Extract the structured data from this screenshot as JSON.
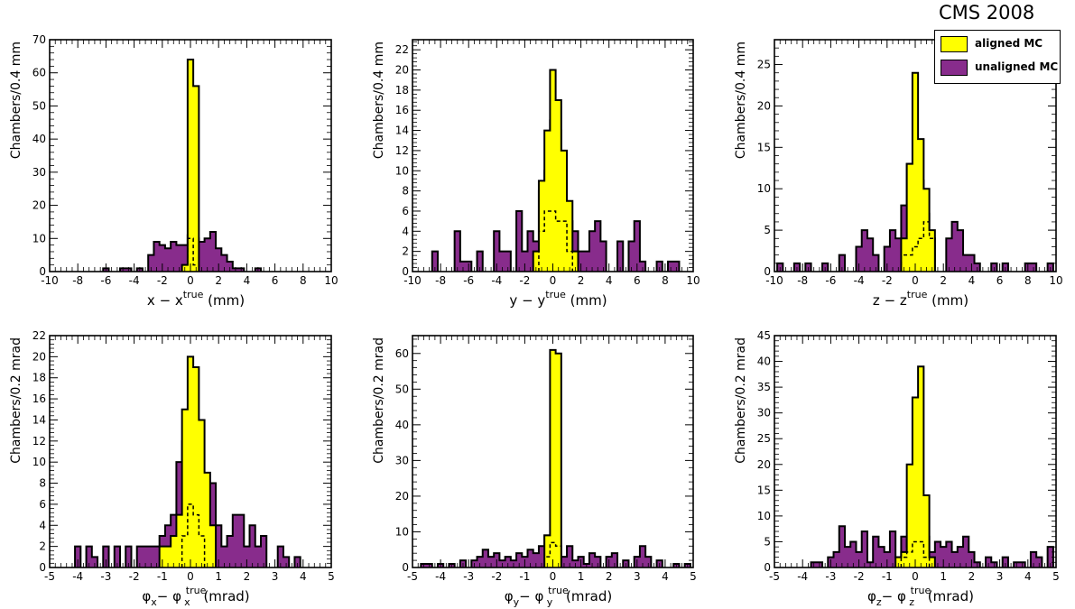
{
  "figure": {
    "label": "CMS 2008"
  },
  "legend": {
    "entries": [
      {
        "label": "aligned MC",
        "color": "#ffff00"
      },
      {
        "label": "unaligned MC",
        "color": "#882c8c"
      }
    ]
  },
  "colors": {
    "aligned": "#ffff00",
    "unaligned": "#882c8c",
    "outline": "#000000"
  },
  "chart_data": [
    {
      "type": "histogram",
      "xlabel": "x − x",
      "xlabel_sup": "true",
      "xlabel_unit": "(mm)",
      "ylabel": "Chambers/0.4 mm",
      "xlim": [
        -10,
        10
      ],
      "ylim": [
        0,
        70
      ],
      "xticks": [
        -10,
        -8,
        -6,
        -4,
        -2,
        0,
        2,
        4,
        6,
        8,
        10
      ],
      "yticks": [
        0,
        10,
        20,
        30,
        40,
        50,
        60,
        70
      ],
      "bin_width": 0.4,
      "unaligned": {
        "x": [
          -6,
          -4.8,
          -4.4,
          -3.6,
          -2.8,
          -2.4,
          -2.0,
          -1.6,
          -1.2,
          -0.8,
          -0.4,
          0,
          0.4,
          0.8,
          1.2,
          1.6,
          2.0,
          2.4,
          2.8,
          3.2,
          3.6,
          4.8
        ],
        "y": [
          1,
          1,
          1,
          1,
          5,
          9,
          8,
          7,
          9,
          8,
          8,
          11,
          10,
          9,
          10,
          12,
          7,
          5,
          3,
          1,
          1,
          1
        ]
      },
      "aligned": {
        "x": [
          -0.4,
          0,
          0.4
        ],
        "y": [
          2,
          64,
          56
        ]
      },
      "aligned_detail": {
        "x": [
          -0.4,
          0,
          0.4
        ],
        "y": [
          2,
          10,
          2
        ]
      }
    },
    {
      "type": "histogram",
      "xlabel": "y − y",
      "xlabel_sup": "true",
      "xlabel_unit": "(mm)",
      "ylabel": "Chambers/0.4 mm",
      "xlim": [
        -10,
        10
      ],
      "ylim": [
        0,
        23
      ],
      "xticks": [
        -10,
        -8,
        -6,
        -4,
        -2,
        0,
        2,
        4,
        6,
        8,
        10
      ],
      "yticks": [
        0,
        2,
        4,
        6,
        8,
        10,
        12,
        14,
        16,
        18,
        20,
        22
      ],
      "bin_width": 0.4,
      "unaligned": {
        "x": [
          -8.4,
          -6.8,
          -6.4,
          -6.0,
          -5.2,
          -4.0,
          -3.6,
          -3.2,
          -2.4,
          -2.0,
          -1.6,
          -1.2,
          -0.8,
          -0.4,
          0,
          0.4,
          0.8,
          1.2,
          1.6,
          2.0,
          2.4,
          2.8,
          3.2,
          3.6,
          4.8,
          5.6,
          6.0,
          6.4,
          7.6,
          8.4,
          8.8
        ],
        "y": [
          2,
          4,
          1,
          1,
          2,
          4,
          2,
          2,
          6,
          2,
          4,
          3,
          8,
          10,
          15,
          14,
          9,
          5,
          4,
          2,
          2,
          4,
          5,
          3,
          3,
          3,
          5,
          1,
          1,
          1,
          1
        ]
      },
      "aligned": {
        "x": [
          -1.2,
          -0.8,
          -0.4,
          0,
          0.4,
          0.8,
          1.2,
          1.6
        ],
        "y": [
          2,
          9,
          14,
          20,
          17,
          12,
          7,
          2
        ]
      },
      "aligned_detail": {
        "x": [
          -0.8,
          -0.4,
          0,
          0.4,
          0.8,
          1.2
        ],
        "y": [
          4,
          6,
          6,
          5,
          5,
          2
        ]
      }
    },
    {
      "type": "histogram",
      "xlabel": "z − z",
      "xlabel_sup": "true",
      "xlabel_unit": "(mm)",
      "ylabel": "Chambers/0.4 mm",
      "xlim": [
        -10,
        10
      ],
      "ylim": [
        0,
        28
      ],
      "xticks": [
        -10,
        -8,
        -6,
        -4,
        -2,
        0,
        2,
        4,
        6,
        8,
        10
      ],
      "yticks": [
        0,
        5,
        10,
        15,
        20,
        25
      ],
      "bin_width": 0.4,
      "unaligned": {
        "x": [
          -9.6,
          -8.4,
          -7.6,
          -6.4,
          -5.2,
          -4.0,
          -3.6,
          -3.2,
          -2.8,
          -2.0,
          -1.6,
          -1.2,
          -0.8,
          -0.4,
          0,
          0.4,
          0.8,
          1.2,
          2.4,
          2.8,
          3.2,
          3.6,
          4.0,
          4.4,
          5.6,
          6.4,
          8.0,
          8.4,
          9.6
        ],
        "y": [
          1,
          1,
          1,
          1,
          2,
          3,
          5,
          4,
          2,
          3,
          5,
          4,
          8,
          13,
          13,
          11,
          7,
          4,
          4,
          6,
          5,
          2,
          2,
          1,
          1,
          1,
          1,
          1,
          1
        ]
      },
      "aligned": {
        "x": [
          -0.8,
          -0.4,
          0,
          0.4,
          0.8,
          1.2
        ],
        "y": [
          4,
          13,
          24,
          16,
          10,
          5
        ]
      },
      "aligned_detail": {
        "x": [
          -0.8,
          -0.4,
          0,
          0.4,
          0.8,
          1.2
        ],
        "y": [
          2,
          2,
          3,
          4,
          6,
          4
        ]
      }
    },
    {
      "type": "histogram",
      "xlabel": "φ",
      "xlabel_sub": "x",
      "xlabel_mid": "− φ",
      "xlabel_sup": "true",
      "xlabel_sub2": "x",
      "xlabel_unit": "(mrad)",
      "ylabel": "Chambers/0.2 mrad",
      "xlim": [
        -5,
        5
      ],
      "ylim": [
        0,
        22
      ],
      "xticks": [
        -5,
        -4,
        -3,
        -2,
        -1,
        0,
        1,
        2,
        3,
        4,
        5
      ],
      "yticks": [
        0,
        2,
        4,
        6,
        8,
        10,
        12,
        14,
        16,
        18,
        20,
        22
      ],
      "bin_width": 0.2,
      "unaligned": {
        "x": [
          -4.0,
          -3.6,
          -3.4,
          -3.0,
          -2.6,
          -2.2,
          -1.8,
          -1.6,
          -1.4,
          -1.2,
          -1.0,
          -0.8,
          -0.6,
          -0.4,
          -0.2,
          0,
          0.2,
          0.4,
          0.6,
          0.8,
          1.0,
          1.2,
          1.4,
          1.6,
          1.8,
          2.0,
          2.2,
          2.4,
          2.6,
          3.2,
          3.4,
          3.8
        ],
        "y": [
          2,
          2,
          1,
          2,
          2,
          2,
          2,
          2,
          2,
          2,
          3,
          4,
          5,
          10,
          12,
          14,
          11,
          8,
          6,
          8,
          4,
          2,
          3,
          5,
          5,
          2,
          4,
          2,
          3,
          2,
          1,
          1
        ]
      },
      "aligned": {
        "x": [
          -1.0,
          -0.8,
          -0.6,
          -0.4,
          -0.2,
          0,
          0.2,
          0.4,
          0.6,
          0.8
        ],
        "y": [
          2,
          2,
          3,
          5,
          15,
          20,
          19,
          14,
          9,
          4
        ]
      },
      "aligned_detail": {
        "x": [
          -0.2,
          0,
          0.2,
          0.4
        ],
        "y": [
          3,
          6,
          5,
          3
        ]
      }
    },
    {
      "type": "histogram",
      "xlabel": "φ",
      "xlabel_sub": "y",
      "xlabel_mid": "− φ",
      "xlabel_sup": "true",
      "xlabel_sub2": "y",
      "xlabel_unit": "(mrad)",
      "ylabel": "Chambers/0.2 mrad",
      "xlim": [
        -5,
        5
      ],
      "ylim": [
        0,
        65
      ],
      "xticks": [
        -5,
        -4,
        -3,
        -2,
        -1,
        0,
        1,
        2,
        3,
        4,
        5
      ],
      "yticks": [
        0,
        10,
        20,
        30,
        40,
        50,
        60
      ],
      "bin_width": 0.2,
      "unaligned": {
        "x": [
          -4.6,
          -4.4,
          -4.0,
          -3.6,
          -3.2,
          -2.8,
          -2.6,
          -2.4,
          -2.2,
          -2.0,
          -1.8,
          -1.6,
          -1.4,
          -1.2,
          -1.0,
          -0.8,
          -0.6,
          -0.4,
          -0.2,
          0,
          0.2,
          0.4,
          0.6,
          0.8,
          1.0,
          1.2,
          1.4,
          1.6,
          2.0,
          2.2,
          2.6,
          3.0,
          3.2,
          3.4,
          3.8,
          4.4,
          4.8
        ],
        "y": [
          1,
          1,
          1,
          1,
          2,
          2,
          3,
          5,
          3,
          4,
          2,
          3,
          2,
          4,
          3,
          5,
          4,
          6,
          9,
          7,
          6,
          3,
          6,
          2,
          3,
          1,
          4,
          3,
          3,
          4,
          2,
          3,
          6,
          3,
          2,
          1,
          1
        ]
      },
      "aligned": {
        "x": [
          -0.2,
          0,
          0.2
        ],
        "y": [
          9,
          61,
          60
        ]
      },
      "aligned_detail": {
        "x": [
          -0.2,
          0,
          0.2
        ],
        "y": [
          3,
          7,
          6
        ]
      }
    },
    {
      "type": "histogram",
      "xlabel": "φ",
      "xlabel_sub": "z",
      "xlabel_mid": "− φ",
      "xlabel_sup": "true",
      "xlabel_sub2": "z",
      "xlabel_unit": "(mrad)",
      "ylabel": "Chambers/0.2 mrad",
      "xlim": [
        -5,
        5
      ],
      "ylim": [
        0,
        45
      ],
      "xticks": [
        -5,
        -4,
        -3,
        -2,
        -1,
        0,
        1,
        2,
        3,
        4,
        5
      ],
      "yticks": [
        0,
        5,
        10,
        15,
        20,
        25,
        30,
        35,
        40,
        45
      ],
      "bin_width": 0.2,
      "unaligned": {
        "x": [
          -3.6,
          -3.4,
          -3.0,
          -2.8,
          -2.6,
          -2.4,
          -2.2,
          -2.0,
          -1.8,
          -1.6,
          -1.4,
          -1.2,
          -1.0,
          -0.8,
          -0.6,
          -0.4,
          -0.2,
          0,
          0.2,
          0.4,
          0.6,
          0.8,
          1.0,
          1.2,
          1.4,
          1.6,
          1.8,
          2.0,
          2.2,
          2.6,
          2.8,
          3.2,
          3.6,
          3.8,
          4.2,
          4.4,
          4.8
        ],
        "y": [
          1,
          1,
          2,
          3,
          8,
          4,
          5,
          3,
          7,
          1,
          6,
          4,
          3,
          7,
          2,
          6,
          4,
          9,
          5,
          6,
          3,
          5,
          4,
          5,
          3,
          4,
          6,
          3,
          1,
          2,
          1,
          2,
          1,
          1,
          3,
          2,
          4
        ]
      },
      "aligned": {
        "x": [
          -0.6,
          -0.4,
          -0.2,
          0,
          0.2,
          0.4,
          0.6
        ],
        "y": [
          2,
          3,
          20,
          33,
          39,
          14,
          2
        ]
      },
      "aligned_detail": {
        "x": [
          -0.4,
          -0.2,
          0,
          0.2,
          0.4
        ],
        "y": [
          2,
          3,
          5,
          5,
          2
        ]
      }
    }
  ]
}
